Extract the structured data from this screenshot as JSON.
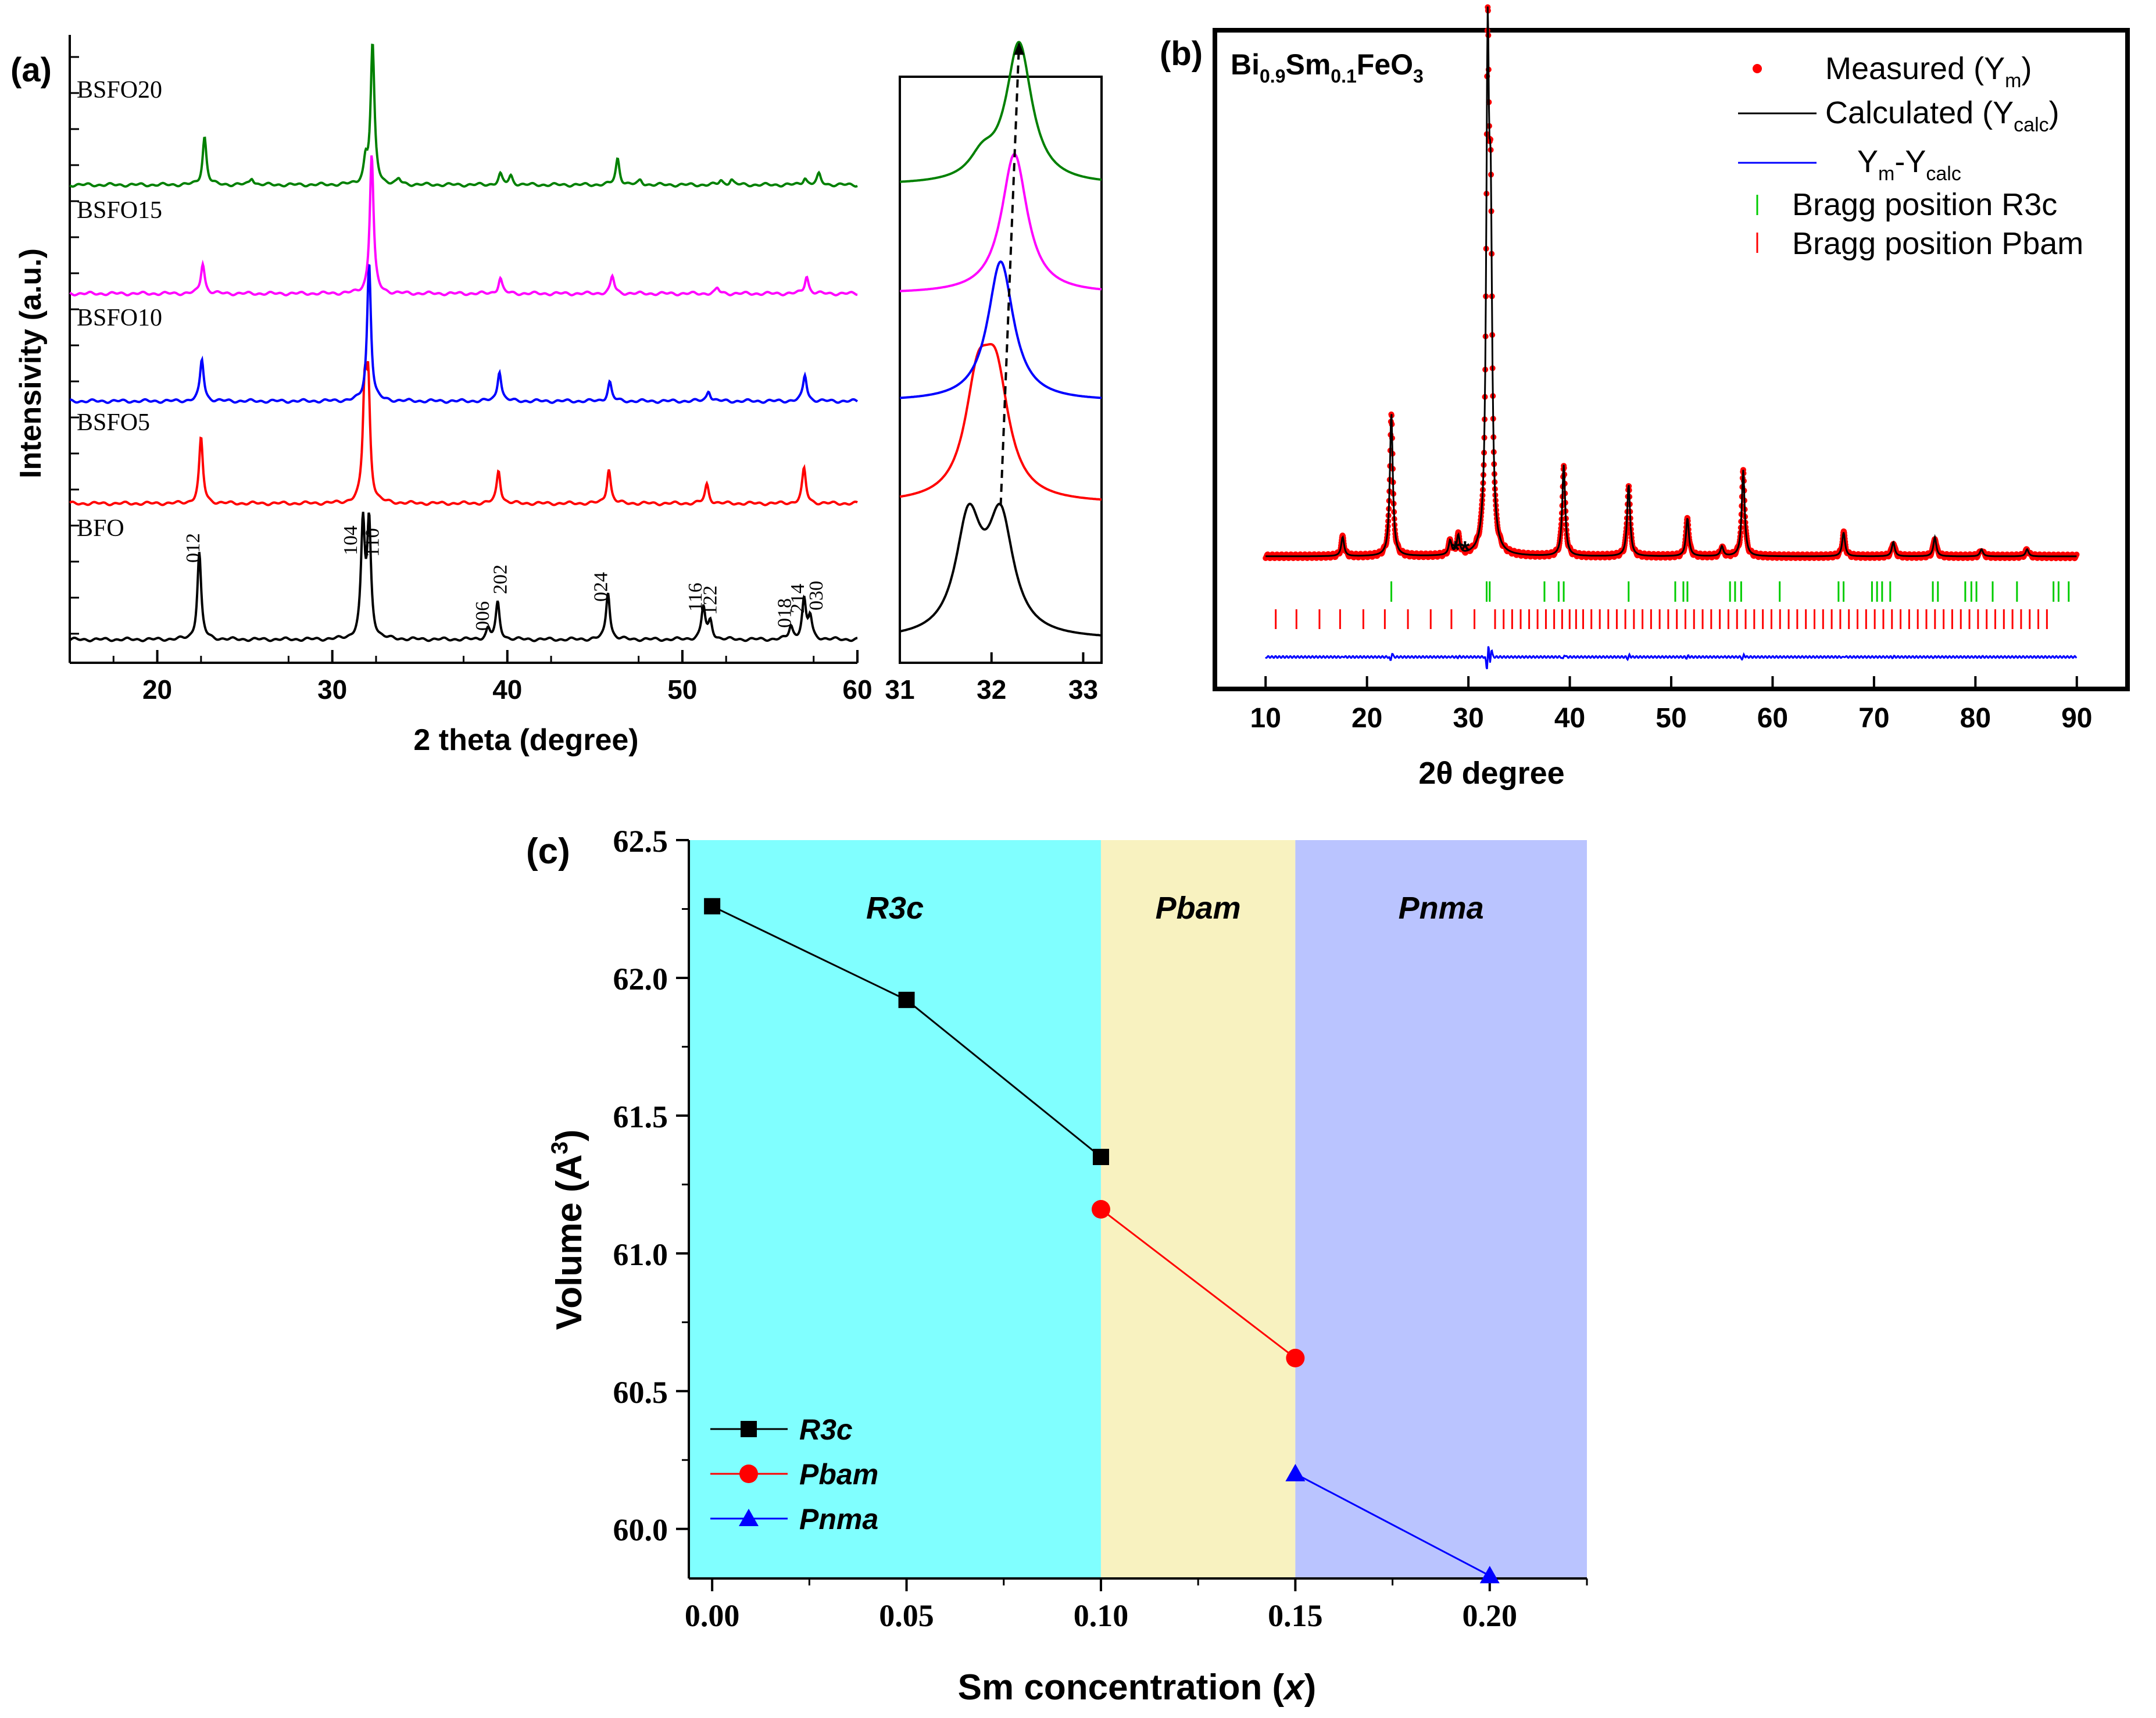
{
  "chart_data": [
    {
      "panel": "(a)",
      "type": "line",
      "xlabel": "2 theta (degree)",
      "ylabel": "Intensivity (a.u.)",
      "xlim": [
        15,
        60
      ],
      "xticks": [
        "20",
        "30",
        "40",
        "50",
        "60"
      ],
      "series": [
        {
          "name": "BFO",
          "color": "#000000",
          "peaks": [
            [
              22.4,
              1.0
            ],
            [
              31.75,
              1.3
            ],
            [
              32.1,
              1.3
            ],
            [
              38.9,
              0.12
            ],
            [
              39.45,
              0.42
            ],
            [
              45.75,
              0.55
            ],
            [
              51.2,
              0.38
            ],
            [
              51.6,
              0.2
            ],
            [
              56.2,
              0.15
            ],
            [
              56.95,
              0.45
            ],
            [
              57.3,
              0.25
            ]
          ]
        },
        {
          "name": "BSFO5",
          "color": "#ff0000",
          "peaks": [
            [
              22.5,
              0.75
            ],
            [
              31.85,
              1.2
            ],
            [
              32.05,
              1.25
            ],
            [
              39.5,
              0.38
            ],
            [
              45.8,
              0.4
            ],
            [
              51.4,
              0.22
            ],
            [
              56.95,
              0.4
            ]
          ]
        },
        {
          "name": "BSFO10",
          "color": "#0000ff",
          "peaks": [
            [
              22.55,
              0.48
            ],
            [
              32.1,
              1.6
            ],
            [
              39.55,
              0.35
            ],
            [
              45.85,
              0.22
            ],
            [
              51.5,
              0.12
            ],
            [
              57.0,
              0.3
            ]
          ]
        },
        {
          "name": "BSFO15",
          "color": "#ff00ff",
          "peaks": [
            [
              22.6,
              0.35
            ],
            [
              32.25,
              1.6
            ],
            [
              39.6,
              0.18
            ],
            [
              46.0,
              0.2
            ],
            [
              52.0,
              0.06
            ],
            [
              57.1,
              0.2
            ]
          ]
        },
        {
          "name": "BSFO20",
          "color": "#008000",
          "peaks": [
            [
              22.7,
              0.55
            ],
            [
              25.4,
              0.08
            ],
            [
              31.9,
              0.25
            ],
            [
              32.3,
              1.6
            ],
            [
              33.8,
              0.06
            ],
            [
              39.6,
              0.12
            ],
            [
              40.2,
              0.1
            ],
            [
              46.3,
              0.3
            ],
            [
              47.6,
              0.05
            ],
            [
              52.2,
              0.05
            ],
            [
              52.8,
              0.06
            ],
            [
              57.0,
              0.08
            ],
            [
              57.8,
              0.12
            ]
          ]
        }
      ],
      "annotations": [
        "012",
        "104",
        "110",
        "006",
        "202",
        "024",
        "116",
        "122",
        "018",
        "214",
        "030"
      ]
    },
    {
      "panel": "(a) inset",
      "type": "line",
      "xlim": [
        31,
        33.2
      ],
      "xticks": [
        "31",
        "32",
        "33"
      ]
    },
    {
      "panel": "(b)",
      "type": "line",
      "title": "Bi0.9Sm0.1FeO3",
      "xlabel": "2θ degree",
      "xlim": [
        5,
        95
      ],
      "xticks": [
        "10",
        "20",
        "30",
        "40",
        "50",
        "60",
        "70",
        "80",
        "90"
      ],
      "series": [
        {
          "name": "Measured (Ym)",
          "color": "#ff0000"
        },
        {
          "name": "Calculated (Ycalc)",
          "color": "#000000"
        },
        {
          "name": "Ym-Ycalc",
          "color": "#0000ff"
        },
        {
          "name": "Bragg position R3c",
          "color": "#00cc00"
        },
        {
          "name": "Bragg position Pbam",
          "color": "#ff0000"
        }
      ],
      "peaks": [
        [
          17.6,
          0.04
        ],
        [
          22.4,
          0.3
        ],
        [
          28.2,
          0.03
        ],
        [
          29.0,
          0.04
        ],
        [
          31.9,
          1.0
        ],
        [
          32.2,
          0.6
        ],
        [
          39.4,
          0.19
        ],
        [
          45.8,
          0.15
        ],
        [
          51.6,
          0.08
        ],
        [
          55.0,
          0.02
        ],
        [
          57.1,
          0.18
        ],
        [
          67.0,
          0.05
        ],
        [
          71.9,
          0.03
        ],
        [
          76.0,
          0.04
        ],
        [
          80.6,
          0.015
        ],
        [
          85.1,
          0.015
        ]
      ],
      "bragg_R3c": [
        22.4,
        31.8,
        32.1,
        37.5,
        38.9,
        39.4,
        45.8,
        50.4,
        51.2,
        51.6,
        55.8,
        56.3,
        56.9,
        60.7,
        66.5,
        67.0,
        69.8,
        70.3,
        70.8,
        71.6,
        75.8,
        76.3,
        79.0,
        79.6,
        80.1,
        81.7,
        84.1,
        87.7,
        88.2,
        89.2
      ],
      "bragg_Pbam_range": [
        11.0,
        87.5
      ],
      "annotations": [
        "**"
      ]
    },
    {
      "panel": "(c)",
      "type": "line",
      "xlabel": "Sm concentration (x)",
      "ylabel": "Volume (A3)",
      "xlim": [
        -0.006,
        0.225
      ],
      "ylim": [
        59.82,
        62.5
      ],
      "xticks": [
        "0.00",
        "0.05",
        "0.10",
        "0.15",
        "0.20"
      ],
      "yticks": [
        "60.0",
        "60.5",
        "61.0",
        "61.5",
        "62.0",
        "62.5"
      ],
      "regions": [
        {
          "label": "R3c",
          "x_range": [
            -0.006,
            0.1
          ],
          "color": "#80ffff"
        },
        {
          "label": "Pbam",
          "x_range": [
            0.1,
            0.15
          ],
          "color": "#f8f2c0"
        },
        {
          "label": "Pnma",
          "x_range": [
            0.15,
            0.225
          ],
          "color": "#bac4ff"
        }
      ],
      "series": [
        {
          "name": "R3c",
          "marker": "square",
          "color": "#000000",
          "x": [
            0.0,
            0.05,
            0.1
          ],
          "y": [
            62.26,
            61.92,
            61.35
          ]
        },
        {
          "name": "Pbam",
          "marker": "circle",
          "color": "#ff0000",
          "x": [
            0.1,
            0.15
          ],
          "y": [
            61.16,
            60.62
          ]
        },
        {
          "name": "Pnma",
          "marker": "triangle",
          "color": "#0000ff",
          "x": [
            0.15,
            0.2
          ],
          "y": [
            60.2,
            59.83
          ]
        }
      ]
    }
  ],
  "labels": {
    "a_panel": "(a)",
    "b_panel": "(b)",
    "c_panel": "(c)",
    "b_title_main": "Bi",
    "b_title_sub1": "0.9",
    "b_title_mid": "Sm",
    "b_title_sub2": "0.1",
    "b_title_end": "FeO",
    "b_title_sub3": "3",
    "b_leg1_text": "Measured (Y",
    "b_leg1_sub": "m",
    "b_leg1_close": ")",
    "b_leg2_text": "Calculated (Y",
    "b_leg2_sub": "calc",
    "b_leg2_close": ")",
    "b_leg3_a": "Y",
    "b_leg3_sub1": "m",
    "b_leg3_b": "-Y",
    "b_leg3_sub2": "calc",
    "b_leg4": "Bragg position R3c",
    "b_leg5": "Bragg position Pbam",
    "b_stars": "**",
    "c_ylabel_main": "Volume (A",
    "c_ylabel_sup": "3",
    "c_ylabel_close": ")",
    "c_xlabel_main": "Sm concentration (",
    "c_xlabel_var": "x",
    "c_xlabel_close": ")"
  }
}
